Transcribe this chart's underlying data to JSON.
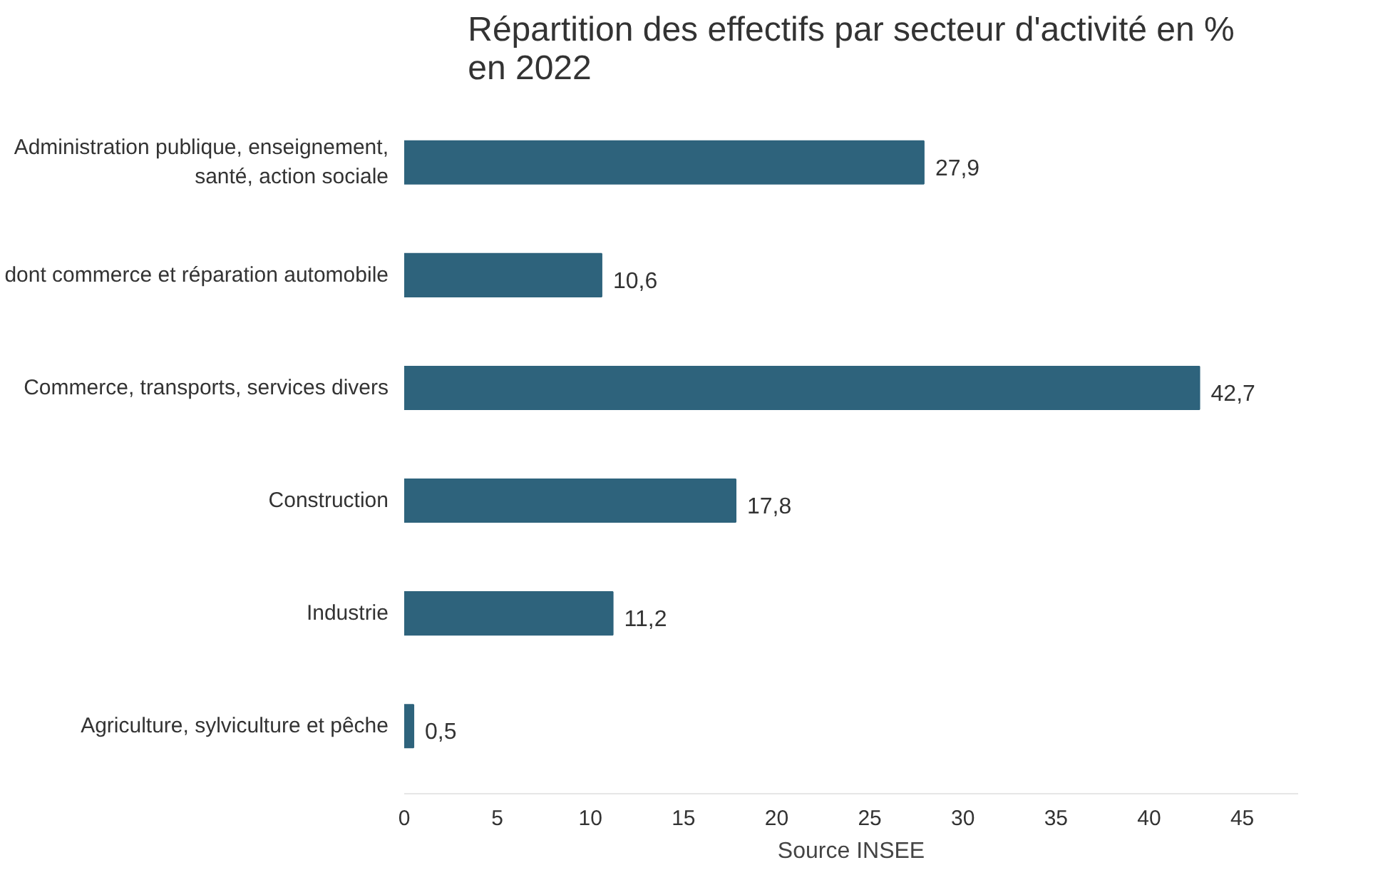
{
  "chart_data": {
    "type": "bar",
    "orientation": "horizontal",
    "title": "Répartition des effectifs par secteur d'activité en % en 2022",
    "categories": [
      "Administration publique, enseignement, santé, action sociale",
      "dont commerce et réparation automobile",
      "Commerce, transports, services divers",
      "Construction",
      "Industrie",
      "Agriculture, sylviculture et pêche"
    ],
    "values": [
      27.9,
      10.6,
      42.7,
      17.8,
      11.2,
      0.5
    ],
    "value_labels": [
      "27,9",
      "10,6",
      "42,7",
      "17,8",
      "11,2",
      "0,5"
    ],
    "color": "#2e637c",
    "xlim": [
      0,
      48
    ],
    "xticks": [
      0,
      5,
      10,
      15,
      20,
      25,
      30,
      35,
      40,
      45
    ],
    "grid": false,
    "annotations": [
      "Source INSEE"
    ]
  }
}
